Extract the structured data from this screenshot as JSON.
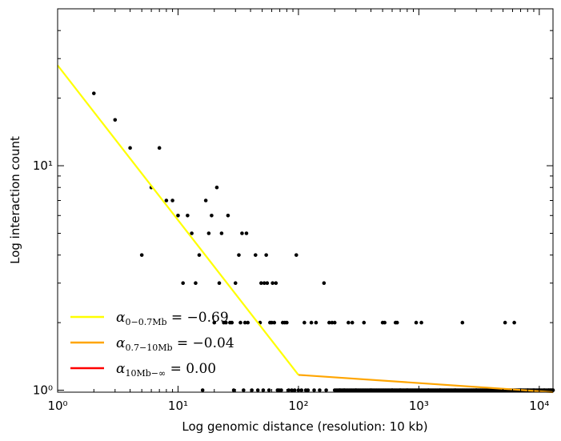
{
  "chart_data": {
    "type": "scatter",
    "xlabel": "Log genomic distance (resolution: 10 kb)",
    "ylabel": "Log interaction count",
    "xscale": "log",
    "yscale": "log",
    "xlim": [
      1,
      13000
    ],
    "ylim": [
      0.98,
      50
    ],
    "x_ticks": [
      {
        "value": 1,
        "label": "10⁰"
      },
      {
        "value": 10,
        "label": "10¹"
      },
      {
        "value": 100,
        "label": "10²"
      },
      {
        "value": 1000,
        "label": "10³"
      },
      {
        "value": 10000,
        "label": "10⁴"
      }
    ],
    "y_ticks": [
      {
        "value": 1,
        "label": "10⁰"
      },
      {
        "value": 10,
        "label": "10¹"
      }
    ],
    "grid": false,
    "legend_position": "lower-left",
    "scatter_points": [
      [
        2,
        21
      ],
      [
        3,
        16
      ],
      [
        4,
        12
      ],
      [
        5,
        4
      ],
      [
        6,
        8
      ],
      [
        7,
        12
      ],
      [
        8,
        7
      ],
      [
        9,
        7
      ],
      [
        10,
        6
      ],
      [
        11,
        3
      ],
      [
        12,
        6
      ],
      [
        13,
        5
      ],
      [
        14,
        3
      ],
      [
        15,
        4
      ],
      [
        16,
        1
      ],
      [
        17,
        7
      ],
      [
        18,
        5
      ],
      [
        19,
        6
      ],
      [
        20,
        2
      ],
      [
        21,
        8
      ],
      [
        22,
        3
      ],
      [
        23,
        5
      ],
      [
        24,
        2
      ],
      [
        25,
        2
      ],
      [
        26,
        6
      ],
      [
        27,
        2
      ],
      [
        28,
        2
      ],
      [
        29,
        1
      ],
      [
        30,
        3
      ],
      [
        32,
        4
      ],
      [
        33,
        2
      ],
      [
        34,
        5
      ],
      [
        35,
        1
      ],
      [
        36,
        2
      ],
      [
        37,
        5
      ],
      [
        38,
        2
      ],
      [
        41,
        1
      ],
      [
        44,
        4
      ],
      [
        46,
        1
      ],
      [
        48,
        2
      ],
      [
        49,
        3
      ],
      [
        51,
        1
      ],
      [
        52,
        3
      ],
      [
        54,
        4
      ],
      [
        55,
        3
      ],
      [
        57,
        1
      ],
      [
        58,
        2
      ],
      [
        60,
        2
      ],
      [
        61,
        3
      ],
      [
        63,
        2
      ],
      [
        65,
        3
      ],
      [
        67,
        1
      ],
      [
        69,
        1
      ],
      [
        72,
        1
      ],
      [
        74,
        2
      ],
      [
        77,
        2
      ],
      [
        80,
        2
      ],
      [
        83,
        1
      ],
      [
        88,
        1
      ],
      [
        93,
        1
      ],
      [
        96,
        4
      ],
      [
        100,
        1
      ],
      [
        106,
        1
      ],
      [
        112,
        2
      ],
      [
        115,
        1
      ],
      [
        120,
        1
      ],
      [
        128,
        2
      ],
      [
        135,
        1
      ],
      [
        140,
        2
      ],
      [
        150,
        1
      ],
      [
        163,
        3
      ],
      [
        170,
        1
      ],
      [
        180,
        2
      ],
      [
        190,
        2
      ],
      [
        200,
        2
      ],
      [
        220,
        1
      ],
      [
        240,
        1
      ],
      [
        260,
        2
      ],
      [
        280,
        2
      ],
      [
        300,
        1
      ],
      [
        350,
        2
      ],
      [
        400,
        1
      ],
      [
        500,
        2
      ],
      [
        520,
        2
      ],
      [
        600,
        1
      ],
      [
        640,
        2
      ],
      [
        660,
        2
      ],
      [
        700,
        1
      ],
      [
        800,
        1
      ],
      [
        950,
        2
      ],
      [
        1050,
        2
      ],
      [
        1200,
        1
      ],
      [
        1500,
        1
      ],
      [
        2000,
        1
      ],
      [
        2300,
        2
      ],
      [
        3000,
        1
      ],
      [
        4000,
        1
      ],
      [
        5200,
        2
      ],
      [
        6200,
        2
      ],
      [
        7000,
        1
      ],
      [
        8000,
        1
      ],
      [
        9000,
        1
      ],
      [
        10000,
        1
      ],
      [
        11000,
        1
      ],
      [
        12000,
        1
      ],
      [
        12500,
        1
      ],
      [
        13000,
        1
      ]
    ],
    "dense_baseline": {
      "y": 1,
      "x_start": 200,
      "x_end": 13000
    },
    "series": [
      {
        "name": "α₀₋₀.₇ₘᵦ = −0.69",
        "color": "#ffff00",
        "points": [
          [
            1,
            28
          ],
          [
            100,
            1.17
          ]
        ]
      },
      {
        "name": "α₀.₇₋₁₀ₘᵦ = −0.04",
        "color": "#ffa500",
        "points": [
          [
            100,
            1.17
          ],
          [
            13000,
            0.98
          ]
        ]
      },
      {
        "name": "α₁₀ₘᵦ₋∞ = 0.00",
        "color": "#ff0000",
        "points": []
      }
    ],
    "legend": [
      {
        "sym": "α",
        "sub": "0−0.7Mb",
        "value": " = −0.69",
        "color": "#ffff00"
      },
      {
        "sym": "α",
        "sub": "0.7−10Mb",
        "value": " = −0.04",
        "color": "#ffa500"
      },
      {
        "sym": "α",
        "sub": "10Mb−∞",
        "value": " = 0.00",
        "color": "#ff0000"
      }
    ]
  }
}
